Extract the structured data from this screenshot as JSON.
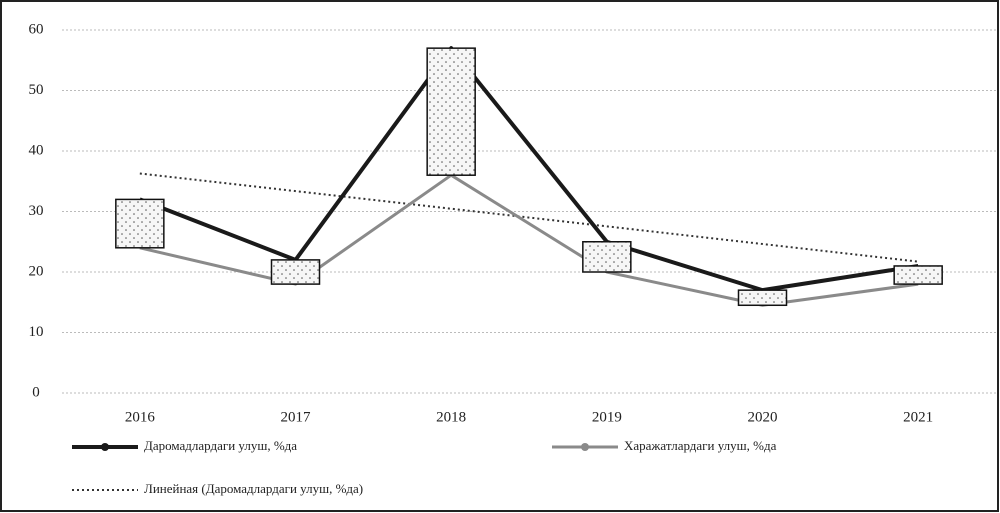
{
  "chart_data": {
    "type": "line",
    "categories": [
      "2016",
      "2017",
      "2018",
      "2019",
      "2020",
      "2021"
    ],
    "series": [
      {
        "name": "Даромадлардаги улуш, %да",
        "color": "#1a1a1a",
        "values": [
          32,
          22,
          57,
          25,
          17,
          21
        ]
      },
      {
        "name": "Харажатлардаги улуш, %да",
        "color": "#8a8a8a",
        "values": [
          24,
          18,
          36,
          20,
          14.5,
          18
        ]
      }
    ],
    "trendline": {
      "name": "Линейная (Даромадлардаги улуш, %да)",
      "series": 0,
      "color": "#333333"
    },
    "up_down_bars": true,
    "ylim": [
      0,
      60
    ],
    "yticks": [
      0,
      10,
      20,
      30,
      40,
      50,
      60
    ],
    "grid": true,
    "legend": "bottom"
  }
}
